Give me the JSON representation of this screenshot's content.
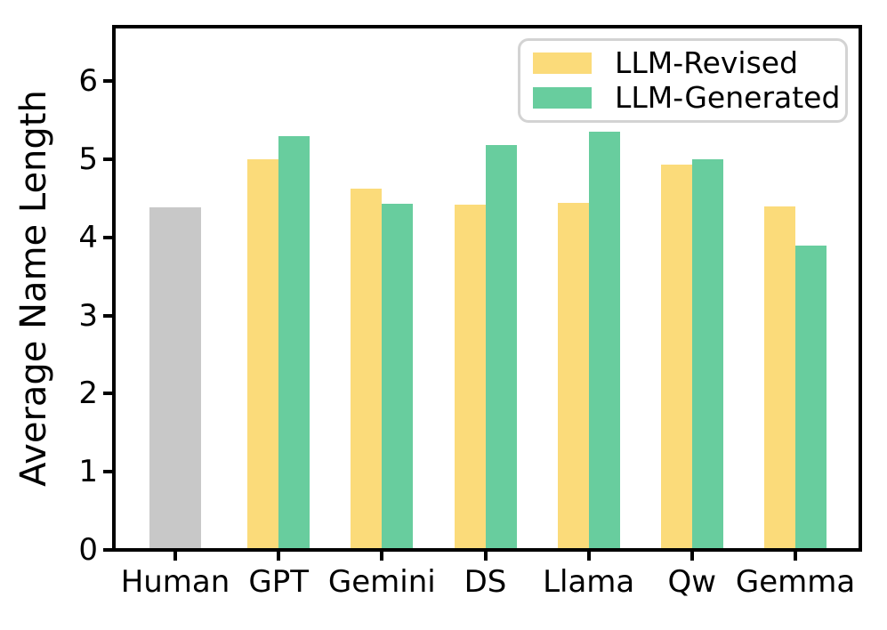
{
  "chart_data": {
    "type": "bar",
    "categories": [
      "Human",
      "GPT",
      "Gemini",
      "DS",
      "Llama",
      "Qw",
      "Gemma"
    ],
    "series": [
      {
        "name": "LLM-Revised",
        "color": "#FBDB7A",
        "values": [
          null,
          5.0,
          4.63,
          4.42,
          4.44,
          4.93,
          4.4
        ]
      },
      {
        "name": "LLM-Generated",
        "color": "#68CD9E",
        "values": [
          null,
          5.3,
          4.43,
          5.19,
          5.36,
          5.0,
          3.9
        ]
      }
    ],
    "human_bar": {
      "category": "Human",
      "value": 4.39,
      "color": "#C8C8C8"
    },
    "ylabel": "Average Name Length",
    "yticks": [
      0,
      1,
      2,
      3,
      4,
      5,
      6
    ],
    "ylim": [
      0,
      6.7
    ],
    "grid": false,
    "legend": {
      "position": "upper right",
      "items": [
        "LLM-Revised",
        "LLM-Generated"
      ]
    },
    "colors": {
      "axis": "#000000",
      "legend_border": "#d3d3d3",
      "background": "#ffffff"
    }
  }
}
